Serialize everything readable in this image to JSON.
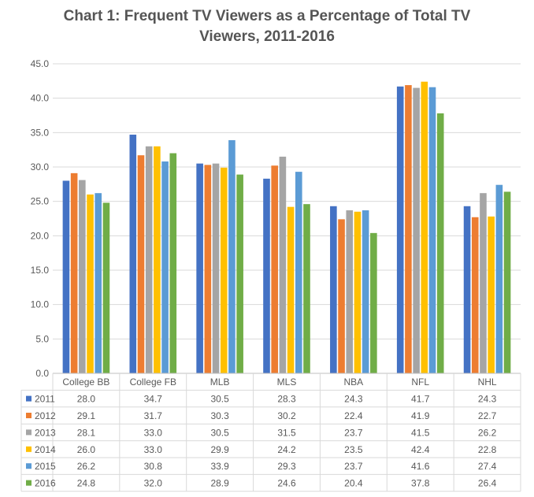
{
  "chart_data": {
    "type": "bar",
    "title_lines": [
      "Chart 1: Frequent TV Viewers as a Percentage of Total TV",
      "Viewers, 2011-2016"
    ],
    "title": "Chart 1: Frequent TV Viewers as a Percentage of Total TV Viewers, 2011-2016",
    "xlabel": "",
    "ylabel": "",
    "ylim": [
      0,
      45
    ],
    "yticks": [
      "0.0",
      "5.0",
      "10.0",
      "15.0",
      "20.0",
      "25.0",
      "30.0",
      "35.0",
      "40.0",
      "45.0"
    ],
    "grid": true,
    "legend": "data-table",
    "categories": [
      "College BB",
      "College FB",
      "MLB",
      "MLS",
      "NBA",
      "NFL",
      "NHL"
    ],
    "series": [
      {
        "name": "2011",
        "color": "#4472C4",
        "values": [
          28.0,
          34.7,
          30.5,
          28.3,
          24.3,
          41.7,
          24.3
        ],
        "labels": [
          "28.0",
          "34.7",
          "30.5",
          "28.3",
          "24.3",
          "41.7",
          "24.3"
        ]
      },
      {
        "name": "2012",
        "color": "#ED7D31",
        "values": [
          29.1,
          31.7,
          30.3,
          30.2,
          22.4,
          41.9,
          22.7
        ],
        "labels": [
          "29.1",
          "31.7",
          "30.3",
          "30.2",
          "22.4",
          "41.9",
          "22.7"
        ]
      },
      {
        "name": "2013",
        "color": "#A5A5A5",
        "values": [
          28.1,
          33.0,
          30.5,
          31.5,
          23.7,
          41.5,
          26.2
        ],
        "labels": [
          "28.1",
          "33.0",
          "30.5",
          "31.5",
          "23.7",
          "41.5",
          "26.2"
        ]
      },
      {
        "name": "2014",
        "color": "#FFC000",
        "values": [
          26.0,
          33.0,
          29.9,
          24.2,
          23.5,
          42.4,
          22.8
        ],
        "labels": [
          "26.0",
          "33.0",
          "29.9",
          "24.2",
          "23.5",
          "42.4",
          "22.8"
        ]
      },
      {
        "name": "2015",
        "color": "#5B9BD5",
        "values": [
          26.2,
          30.8,
          33.9,
          29.3,
          23.7,
          41.6,
          27.4
        ],
        "labels": [
          "26.2",
          "30.8",
          "33.9",
          "29.3",
          "23.7",
          "41.6",
          "27.4"
        ]
      },
      {
        "name": "2016",
        "color": "#70AD47",
        "values": [
          24.8,
          32.0,
          28.9,
          24.6,
          20.4,
          37.8,
          26.4
        ],
        "labels": [
          "24.8",
          "32.0",
          "28.9",
          "24.6",
          "20.4",
          "37.8",
          "26.4"
        ]
      }
    ]
  }
}
